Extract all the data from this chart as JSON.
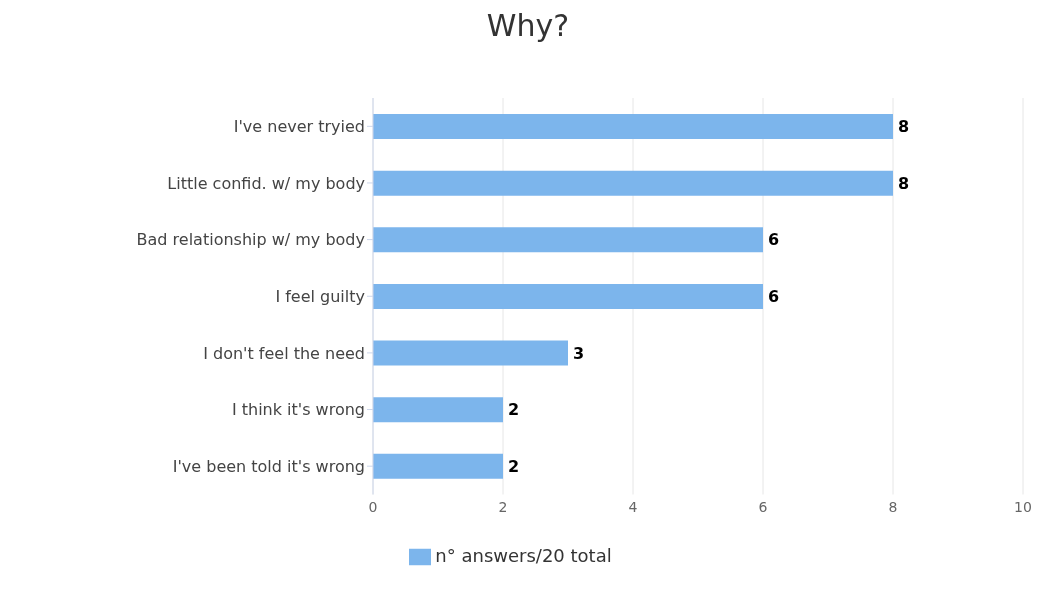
{
  "chart_data": {
    "type": "bar",
    "orientation": "horizontal",
    "title": "Why?",
    "categories": [
      "I've never tryied",
      "Little confid. w/ my body",
      "Bad relationship w/ my body",
      "I feel guilty",
      "I don't feel the need",
      "I think it's wrong",
      "I've been told it's wrong"
    ],
    "series": [
      {
        "name": "n° answers/20 total",
        "color": "#7cb5ec",
        "values": [
          8,
          8,
          6,
          6,
          3,
          2,
          2
        ]
      }
    ],
    "xlim": [
      0,
      10
    ],
    "xticks": [
      0,
      2,
      4,
      6,
      8,
      10
    ],
    "grid": "x",
    "legend": "bottom",
    "data_labels": true
  }
}
